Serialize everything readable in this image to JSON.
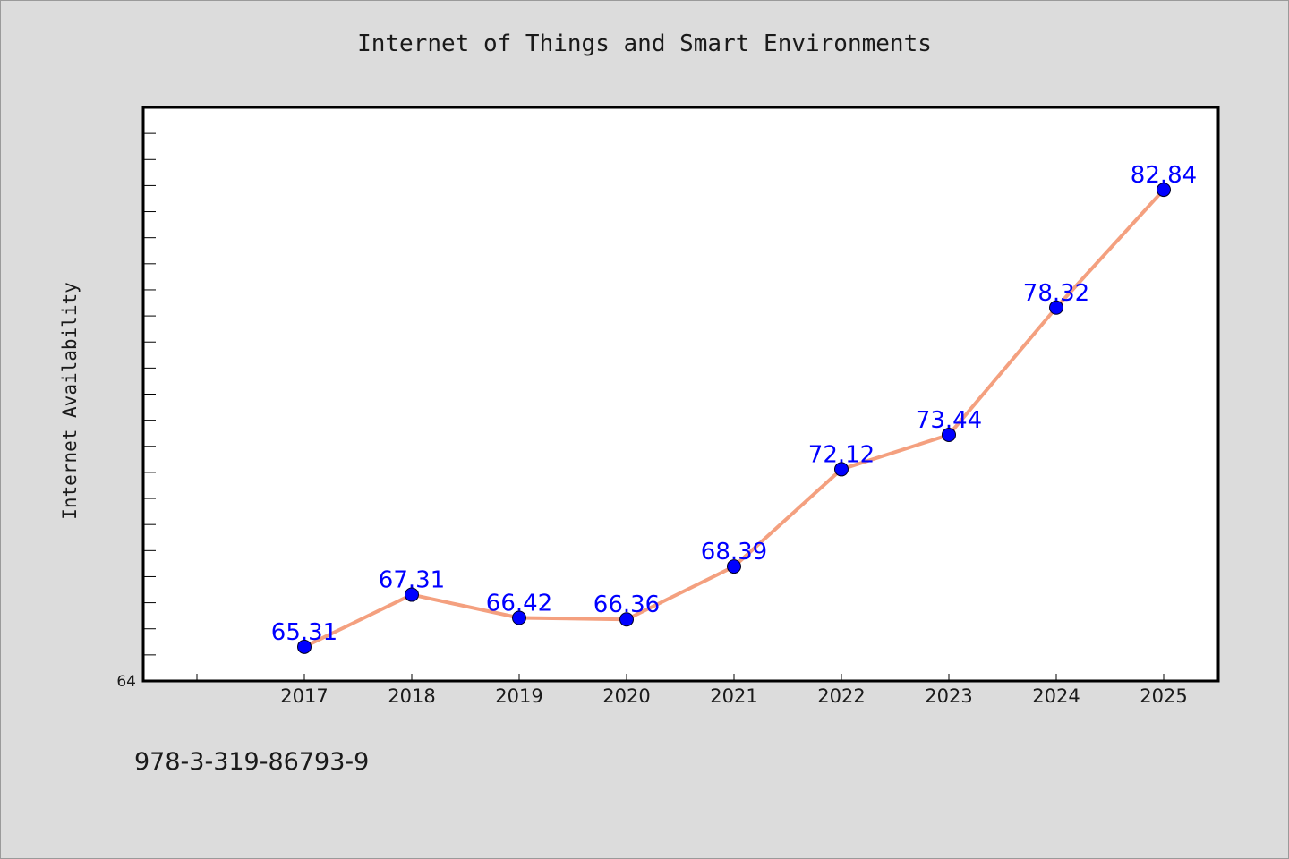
{
  "chart_data": {
    "type": "line",
    "title": "Internet of Things and Smart Environments",
    "xlabel": "",
    "ylabel": "Internet Availability",
    "categories": [
      "2017",
      "2018",
      "2019",
      "2020",
      "2021",
      "2022",
      "2023",
      "2024",
      "2025"
    ],
    "series": [
      {
        "values": [
          65.31,
          67.31,
          66.42,
          66.36,
          68.39,
          72.12,
          73.44,
          78.32,
          82.84
        ],
        "labels": [
          "65.31",
          "67.31",
          "66.42",
          "66.36",
          "68.39",
          "72.12",
          "73.44",
          "78.32",
          "82.84"
        ]
      }
    ],
    "ylim": [
      64,
      86
    ],
    "ytick_labels": [
      "64"
    ],
    "grid": false,
    "colors": {
      "line": "#f4a07f",
      "marker": "#0000ff",
      "data_label": "#0000ff",
      "plot_background": "#ffffff",
      "figure_background": "#dcdcdc"
    }
  },
  "footnote": "978-3-319-86793-9"
}
